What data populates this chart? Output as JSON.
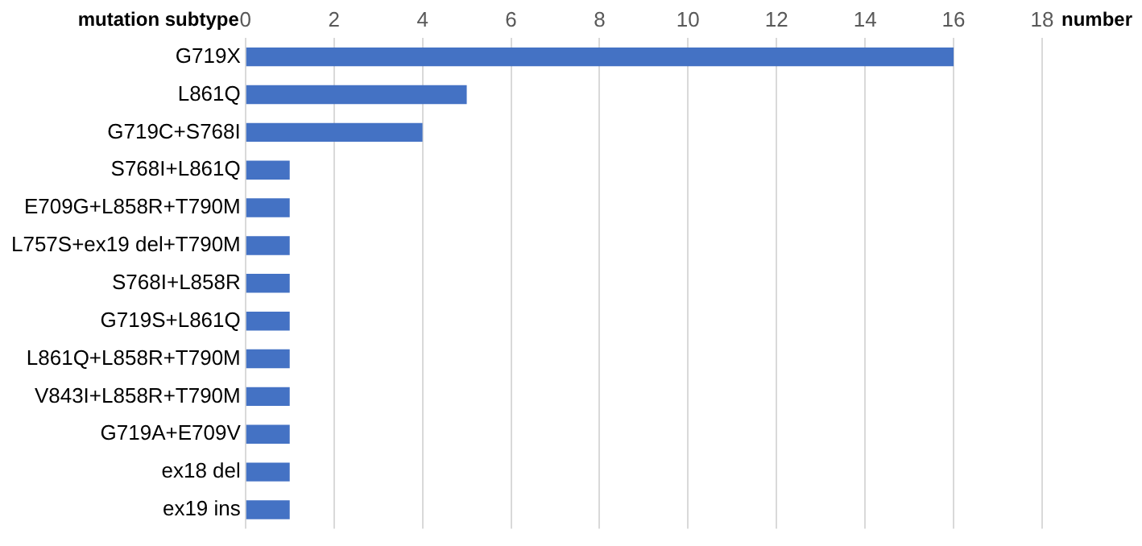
{
  "chart_data": {
    "type": "bar",
    "orientation": "horizontal",
    "ylabel": "mutation subtype",
    "xlabel": "number",
    "categories": [
      "G719X",
      "L861Q",
      "G719C+S768I",
      "S768I+L861Q",
      "E709G+L858R+T790M",
      "L757S+ex19 del+T790M",
      "S768I+L858R",
      "G719S+L861Q",
      "L861Q+L858R+T790M",
      "V843I+L858R+T790M",
      "G719A+E709V",
      "ex18 del",
      "ex19 ins"
    ],
    "values": [
      16,
      5,
      4,
      1,
      1,
      1,
      1,
      1,
      1,
      1,
      1,
      1,
      1
    ],
    "color": "#4472c4",
    "xlim": [
      0,
      18
    ],
    "xticks": [
      0,
      2,
      4,
      6,
      8,
      10,
      12,
      14,
      16,
      18
    ],
    "grid": "x"
  }
}
